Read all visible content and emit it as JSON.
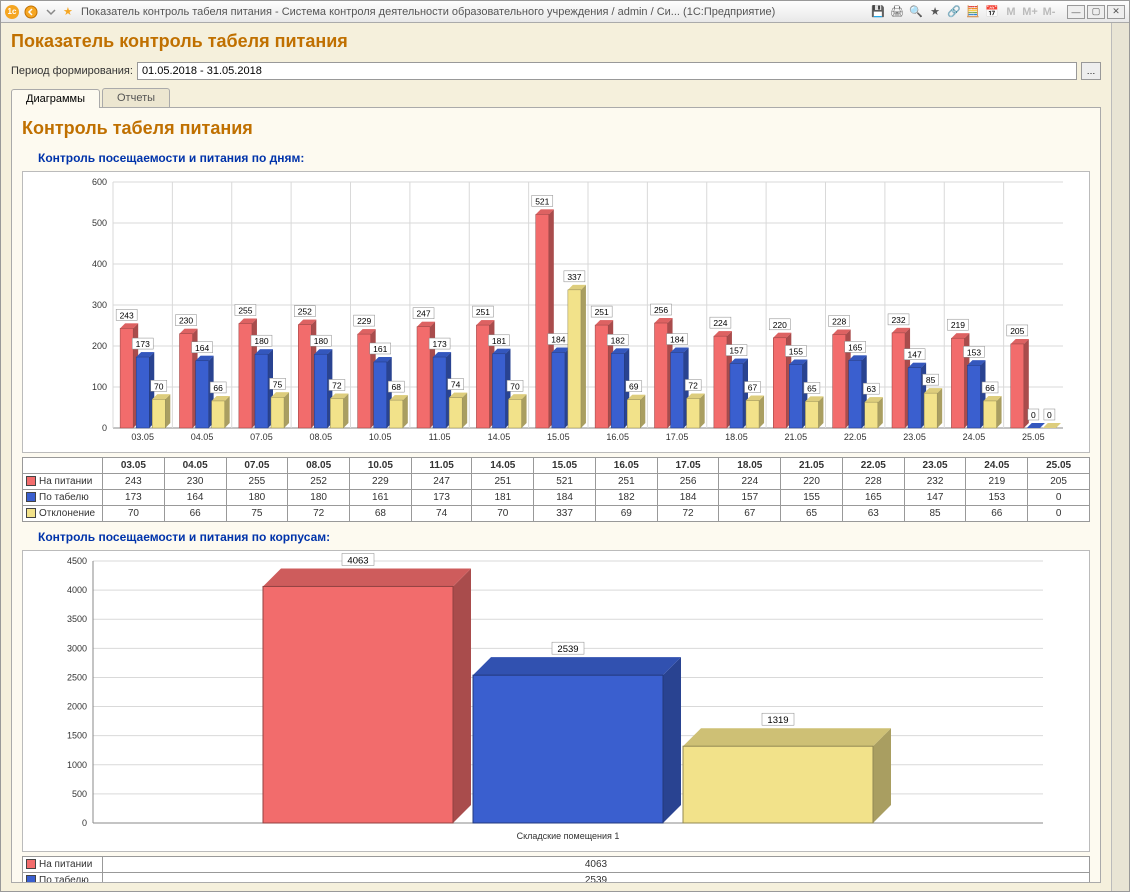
{
  "window": {
    "title": "Показатель контроль табеля питания - Система контроля деятельности образовательного учреждения / admin / Си...   (1С:Предприятие)"
  },
  "page": {
    "heading": "Показатель контроль табеля питания",
    "period_label": "Период формирования:",
    "period_value": "01.05.2018 - 31.05.2018"
  },
  "tabs": {
    "diagrams": "Диаграммы",
    "reports": "Отчеты"
  },
  "section": {
    "heading": "Контроль табеля питания"
  },
  "chart1": {
    "title": "Контроль посещаемости и питания по дням:",
    "ylim": [
      0,
      600
    ],
    "ytick_step": 100,
    "categories": [
      "03.05",
      "04.05",
      "07.05",
      "08.05",
      "10.05",
      "11.05",
      "14.05",
      "15.05",
      "16.05",
      "17.05",
      "18.05",
      "21.05",
      "22.05",
      "23.05",
      "24.05",
      "25.05"
    ],
    "series": [
      {
        "name": "На питании",
        "color": "#f26c6c",
        "values": [
          243,
          230,
          255,
          252,
          229,
          247,
          251,
          521,
          251,
          256,
          224,
          220,
          228,
          232,
          219,
          205
        ]
      },
      {
        "name": "По табелю",
        "color": "#3a5fcf",
        "values": [
          173,
          164,
          180,
          180,
          161,
          173,
          181,
          184,
          182,
          184,
          157,
          155,
          165,
          147,
          153,
          0
        ]
      },
      {
        "name": "Отклонение",
        "color": "#f2e28a",
        "values": [
          70,
          66,
          75,
          72,
          68,
          74,
          70,
          337,
          69,
          72,
          67,
          65,
          63,
          85,
          66,
          0
        ]
      }
    ],
    "grid_color": "#d9d9d9",
    "background_color": "#ffffff",
    "label_fontsize": 9
  },
  "chart2": {
    "title": "Контроль посещаемости и питания по корпусам:",
    "ylim": [
      0,
      4500
    ],
    "ytick_step": 500,
    "xlabel": "Складские помещения 1",
    "series": [
      {
        "name": "На питании",
        "color": "#f26c6c",
        "value": 4063
      },
      {
        "name": "По табелю",
        "color": "#3a5fcf",
        "value": 2539
      },
      {
        "name": "Отклонение",
        "color": "#f2e28a",
        "value": 1319
      }
    ],
    "grid_color": "#d9d9d9",
    "background_color": "#ffffff",
    "label_fontsize": 9
  },
  "toolbar_letters": {
    "m1": "M",
    "m2": "M+",
    "m3": "M-"
  }
}
